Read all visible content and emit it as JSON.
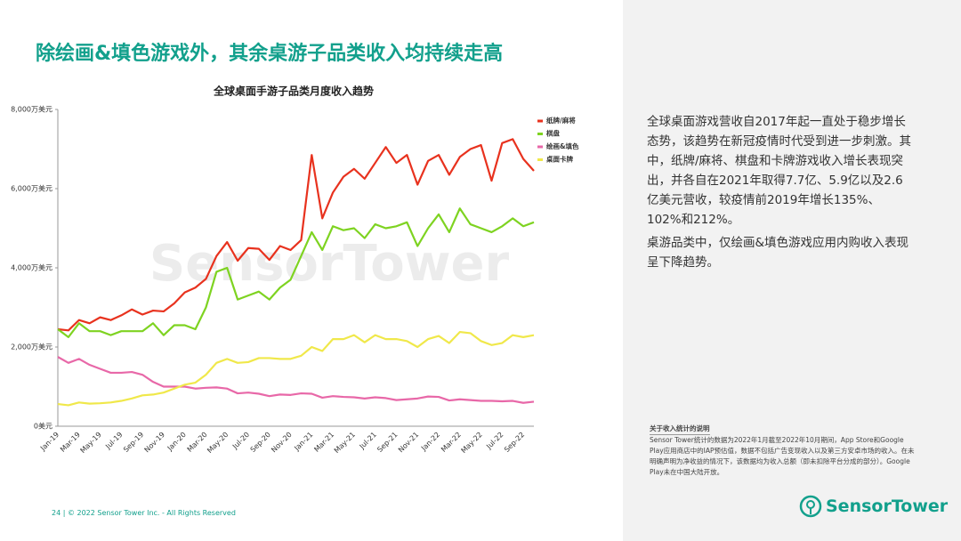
{
  "slide": {
    "title": "除绘画&填色游戏外，其余桌游子品类收入均持续走高",
    "footer": "24  |  © 2022 Sensor Tower Inc. - All Rights Reserved",
    "watermark": "SensorTower",
    "logo": "SensorTower"
  },
  "sidebar": {
    "paragraphs": [
      "全球桌面游戏营收自2017年起一直处于稳步增长态势，该趋势在新冠疫情时代受到进一步刺激。其中，纸牌/麻将、棋盘和卡牌游戏收入增长表现突出，并各自在2021年取得7.7亿、5.9亿以及2.6亿美元营收，较疫情前2019年增长135%、102%和212%。",
      "桌游品类中，仅绘画&填色游戏应用内购收入表现呈下降趋势。"
    ],
    "note_title": "关于收入统计的说明",
    "note_text": "Sensor Tower统计的数据为2022年1月截至2022年10月期间，App Store和Google Play应用商店中的IAP预估值，数据不包括广告变现收入以及第三方安卓市场的收入。在未明确声明为净收益的情况下，该数据均为收入总额（即未扣除平台分成的部分）。Google Play未在中国大陆开放。"
  },
  "chart_data": {
    "type": "line",
    "title": "全球桌面手游子品类月度收入趋势",
    "legend": "upper right",
    "grid": false,
    "categories": [
      "Jan-19",
      null,
      "Mar-19",
      null,
      "May-19",
      null,
      "Jul-19",
      null,
      "Sep-19",
      null,
      "Nov-19",
      null,
      "Jan-20",
      null,
      "Mar-20",
      null,
      "May-20",
      null,
      "Jul-20",
      null,
      "Sep-20",
      null,
      "Nov-20",
      null,
      "Jan-21",
      null,
      "Mar-21",
      null,
      "May-21",
      null,
      "Jul-21",
      null,
      "Sep-21",
      null,
      "Nov-21",
      null,
      "Jan-22",
      null,
      "Mar-22",
      null,
      "May-22",
      null,
      "Jul-22",
      null,
      "Sep-22",
      null
    ],
    "ylim": [
      0,
      8000
    ],
    "yticks": [
      {
        "value": 0,
        "label": "0美元"
      },
      {
        "value": 2000,
        "label": "2,000万美元"
      },
      {
        "value": 4000,
        "label": "4,000万美元"
      },
      {
        "value": 6000,
        "label": "6,000万美元"
      },
      {
        "value": 8000,
        "label": "8,000万美元"
      }
    ],
    "series": [
      {
        "name": "纸牌/麻将",
        "color": "#e8321e",
        "values": [
          2450,
          2420,
          2680,
          2600,
          2750,
          2680,
          2800,
          2950,
          2820,
          2920,
          2900,
          3100,
          3380,
          3500,
          3720,
          4300,
          4650,
          4180,
          4500,
          4480,
          4200,
          4550,
          4450,
          4700,
          6850,
          5250,
          5900,
          6300,
          6500,
          6250,
          6650,
          7050,
          6650,
          6850,
          6100,
          6700,
          6850,
          6350,
          6800,
          7000,
          7100,
          6200,
          7150,
          7250,
          6750,
          6450
        ]
      },
      {
        "name": "棋盘",
        "color": "#7ed321",
        "values": [
          2450,
          2250,
          2600,
          2400,
          2400,
          2300,
          2400,
          2400,
          2400,
          2600,
          2300,
          2550,
          2550,
          2450,
          3000,
          3900,
          4000,
          3200,
          3300,
          3400,
          3200,
          3500,
          3700,
          4300,
          4900,
          4450,
          5050,
          4950,
          5000,
          4750,
          5100,
          5000,
          5050,
          5150,
          4550,
          5000,
          5350,
          4900,
          5500,
          5100,
          5000,
          4900,
          5050,
          5250,
          5050,
          5150
        ]
      },
      {
        "name": "绘画&填色",
        "color": "#e868a8",
        "values": [
          1750,
          1600,
          1700,
          1550,
          1450,
          1350,
          1350,
          1370,
          1300,
          1120,
          1000,
          1000,
          1000,
          950,
          970,
          980,
          950,
          830,
          850,
          820,
          760,
          800,
          790,
          830,
          820,
          720,
          760,
          740,
          730,
          700,
          730,
          710,
          660,
          680,
          700,
          750,
          740,
          650,
          680,
          660,
          640,
          640,
          630,
          640,
          590,
          620
        ]
      },
      {
        "name": "桌面卡牌",
        "color": "#f0e84a",
        "values": [
          560,
          530,
          600,
          570,
          580,
          600,
          640,
          700,
          780,
          800,
          850,
          950,
          1050,
          1100,
          1300,
          1600,
          1700,
          1600,
          1620,
          1720,
          1720,
          1700,
          1700,
          1780,
          2000,
          1900,
          2200,
          2200,
          2300,
          2120,
          2300,
          2200,
          2200,
          2150,
          2000,
          2200,
          2280,
          2100,
          2380,
          2350,
          2150,
          2050,
          2100,
          2300,
          2250,
          2300
        ]
      }
    ]
  }
}
